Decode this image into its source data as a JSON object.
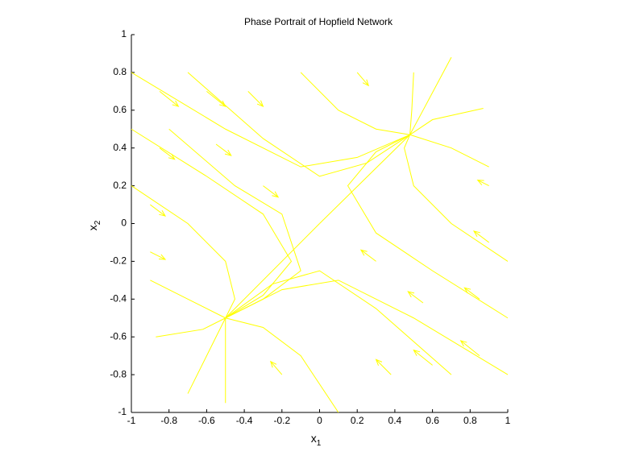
{
  "chart_data": {
    "type": "phase",
    "title": "Phase Portrait of Hopfield Network",
    "xlabel": {
      "text": "x",
      "subscript": "1"
    },
    "ylabel": {
      "text": "x",
      "subscript": "2"
    },
    "xlim": [
      -1,
      1
    ],
    "ylim": [
      -1,
      1
    ],
    "xticks": [
      -1,
      -0.8,
      -0.6,
      -0.4,
      -0.2,
      0,
      0.2,
      0.4,
      0.6,
      0.8,
      1
    ],
    "yticks": [
      -1,
      -0.8,
      -0.6,
      -0.4,
      -0.2,
      0,
      0.2,
      0.4,
      0.6,
      0.8,
      1
    ],
    "color": "#ffff00",
    "trajectories": [
      {
        "x": [
          -1,
          -0.5,
          -0.1,
          0.2,
          0.48
        ],
        "y": [
          0.8,
          0.5,
          0.3,
          0.35,
          0.47
        ]
      },
      {
        "x": [
          -0.7,
          -0.3,
          0,
          0.25,
          0.48
        ],
        "y": [
          0.8,
          0.45,
          0.25,
          0.32,
          0.47
        ]
      },
      {
        "x": [
          -0.1,
          0.1,
          0.3,
          0.48
        ],
        "y": [
          0.8,
          0.6,
          0.5,
          0.47
        ]
      },
      {
        "x": [
          -1,
          -0.6,
          -0.3,
          -0.15,
          -0.3,
          -0.5
        ],
        "y": [
          0.5,
          0.25,
          0.05,
          -0.2,
          -0.38,
          -0.5
        ]
      },
      {
        "x": [
          -1,
          -0.7,
          -0.5,
          -0.45,
          -0.5
        ],
        "y": [
          0.2,
          0,
          -0.2,
          -0.4,
          -0.5
        ]
      },
      {
        "x": [
          -0.9,
          -0.7,
          -0.5
        ],
        "y": [
          -0.3,
          -0.4,
          -0.5
        ]
      },
      {
        "x": [
          -0.8,
          -0.45,
          -0.2,
          -0.1,
          -0.3,
          -0.5
        ],
        "y": [
          0.5,
          0.2,
          0.05,
          -0.25,
          -0.4,
          -0.5
        ]
      },
      {
        "x": [
          1,
          0.5,
          0.1,
          -0.2,
          -0.5
        ],
        "y": [
          -0.8,
          -0.5,
          -0.3,
          -0.35,
          -0.5
        ]
      },
      {
        "x": [
          0.7,
          0.3,
          0,
          -0.25,
          -0.5
        ],
        "y": [
          -0.8,
          -0.45,
          -0.25,
          -0.32,
          -0.5
        ]
      },
      {
        "x": [
          0.1,
          -0.1,
          -0.3,
          -0.5
        ],
        "y": [
          -1,
          -0.7,
          -0.55,
          -0.5
        ]
      },
      {
        "x": [
          1,
          0.6,
          0.3,
          0.15,
          0.3,
          0.48
        ],
        "y": [
          -0.5,
          -0.25,
          -0.05,
          0.2,
          0.38,
          0.47
        ]
      },
      {
        "x": [
          1,
          0.7,
          0.5,
          0.45,
          0.48
        ],
        "y": [
          -0.2,
          0,
          0.2,
          0.4,
          0.47
        ]
      },
      {
        "x": [
          0.9,
          0.7,
          0.48
        ],
        "y": [
          0.3,
          0.4,
          0.47
        ]
      },
      {
        "x": [
          0.7,
          0.55,
          0.48
        ],
        "y": [
          0.88,
          0.6,
          0.47
        ]
      },
      {
        "x": [
          0.87,
          0.6,
          0.48
        ],
        "y": [
          0.61,
          0.55,
          0.47
        ]
      },
      {
        "x": [
          0.5,
          0.49,
          0.48
        ],
        "y": [
          0.8,
          0.6,
          0.47
        ]
      },
      {
        "x": [
          -0.7,
          -0.56,
          -0.5
        ],
        "y": [
          -0.9,
          -0.62,
          -0.5
        ]
      },
      {
        "x": [
          -0.87,
          -0.62,
          -0.5
        ],
        "y": [
          -0.6,
          -0.56,
          -0.5
        ]
      },
      {
        "x": [
          -0.5,
          -0.5,
          -0.5
        ],
        "y": [
          -0.95,
          -0.65,
          -0.5
        ]
      },
      {
        "x": [
          0,
          0.48
        ],
        "y": [
          0,
          0.47
        ]
      },
      {
        "x": [
          0,
          -0.5
        ],
        "y": [
          0,
          -0.5
        ]
      }
    ],
    "arrows": {
      "x": [
        -0.85,
        -0.6,
        -0.38,
        -0.85,
        -0.55,
        -0.3,
        -0.9,
        -0.9,
        0.85,
        0.6,
        0.38,
        0.85,
        0.55,
        0.3,
        0.9,
        0.9,
        0.2,
        -0.2
      ],
      "y": [
        0.7,
        0.7,
        0.7,
        0.4,
        0.42,
        0.2,
        0.1,
        -0.15,
        -0.7,
        -0.75,
        -0.8,
        -0.4,
        -0.42,
        -0.2,
        -0.1,
        0.2,
        0.8,
        -0.8
      ],
      "u": [
        0.1,
        0.1,
        0.08,
        0.08,
        0.08,
        0.08,
        0.08,
        0.08,
        -0.1,
        -0.1,
        -0.08,
        -0.08,
        -0.08,
        -0.08,
        -0.08,
        -0.06,
        0.06,
        -0.06
      ],
      "v": [
        -0.08,
        -0.08,
        -0.08,
        -0.06,
        -0.06,
        -0.06,
        -0.06,
        -0.04,
        0.08,
        0.08,
        0.08,
        0.06,
        0.06,
        0.06,
        0.06,
        0.03,
        -0.07,
        0.07
      ]
    }
  }
}
